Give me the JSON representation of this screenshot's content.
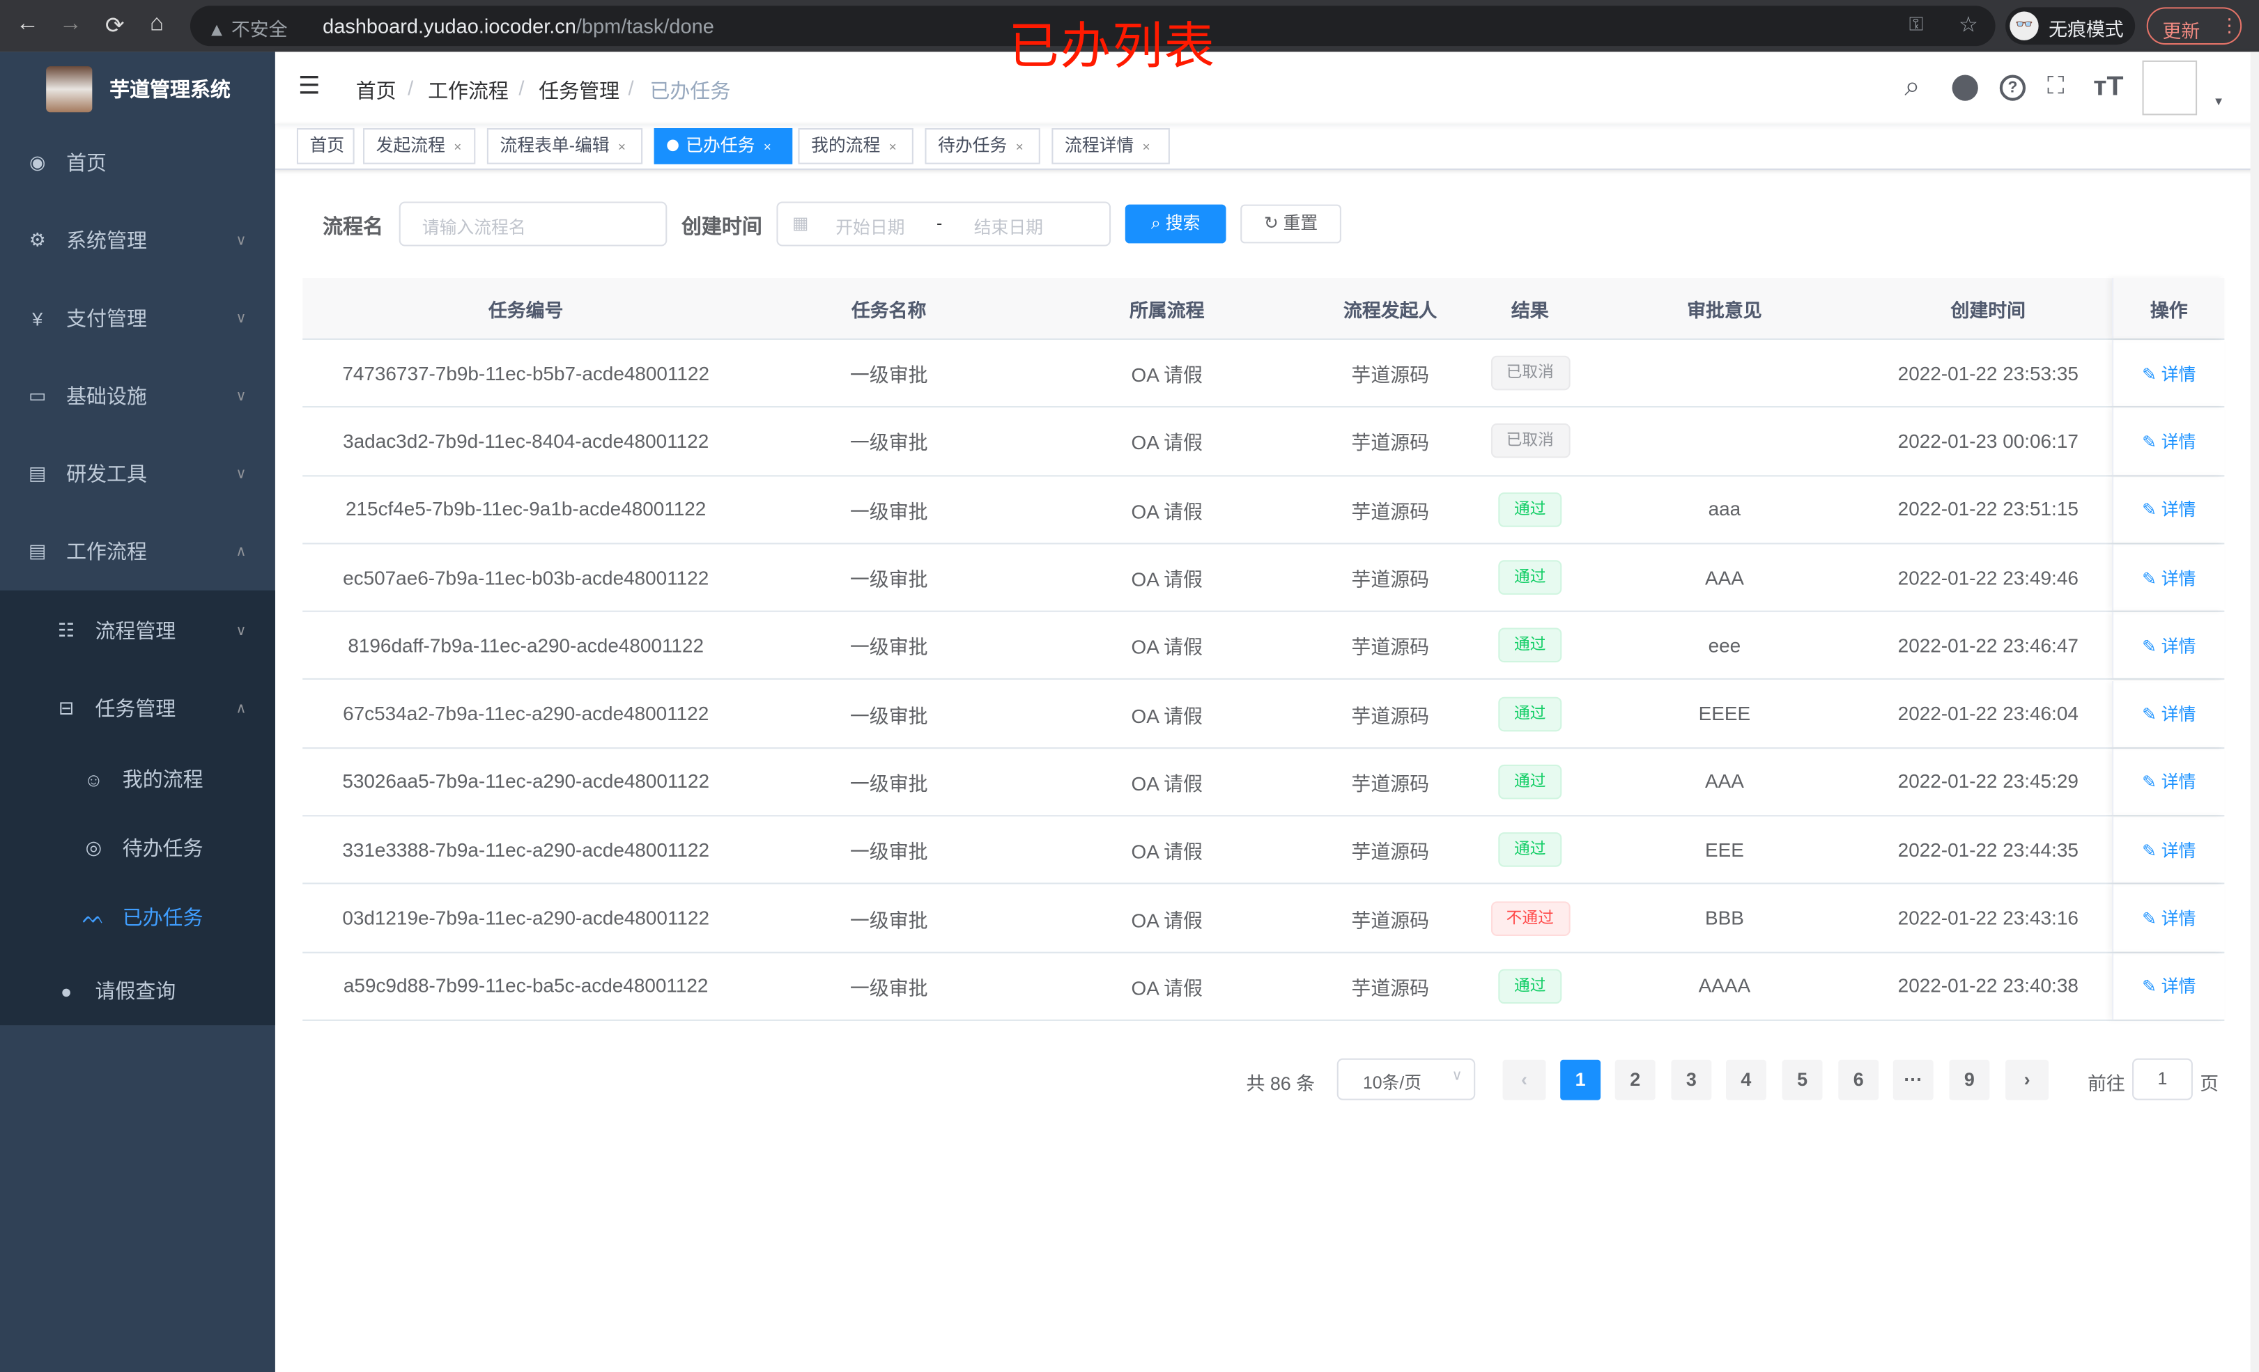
{
  "browser": {
    "back": "←",
    "forward": "→",
    "reload": "⟳",
    "home": "⌂",
    "security_label": "不安全",
    "url_host": "dashboard.yudao.iocoder.cn",
    "url_path": "/bpm/task/done",
    "incognito_label": "无痕模式",
    "update_label": "更新"
  },
  "annotation": "已办列表",
  "sidebar": {
    "title": "芋道管理系统",
    "items": [
      {
        "label": "首页",
        "icon": "dashboard-icon"
      },
      {
        "label": "系统管理",
        "icon": "gear-icon"
      },
      {
        "label": "支付管理",
        "icon": "yen-icon"
      },
      {
        "label": "基础设施",
        "icon": "monitor-icon"
      },
      {
        "label": "研发工具",
        "icon": "toolbox-icon"
      },
      {
        "label": "工作流程",
        "icon": "toolbox-icon"
      },
      {
        "label": "流程管理",
        "icon": "list-icon"
      },
      {
        "label": "任务管理",
        "icon": "tree-icon"
      },
      {
        "label": "我的流程",
        "icon": "chat-icon"
      },
      {
        "label": "待办任务",
        "icon": "eye-icon"
      },
      {
        "label": "已办任务",
        "icon": "eye-closed-icon"
      },
      {
        "label": "请假查询",
        "icon": "user-icon"
      }
    ]
  },
  "breadcrumb": [
    "首页",
    "工作流程",
    "任务管理",
    "已办任务"
  ],
  "tags": [
    {
      "label": "首页"
    },
    {
      "label": "发起流程"
    },
    {
      "label": "流程表单-编辑"
    },
    {
      "label": "已办任务"
    },
    {
      "label": "我的流程"
    },
    {
      "label": "待办任务"
    },
    {
      "label": "流程详情"
    }
  ],
  "search": {
    "name_label": "流程名",
    "name_placeholder": "请输入流程名",
    "time_label": "创建时间",
    "start_placeholder": "开始日期",
    "range_sep": "-",
    "end_placeholder": "结束日期",
    "search_btn": "搜索",
    "reset_btn": "重置"
  },
  "table": {
    "headers": [
      "任务编号",
      "任务名称",
      "所属流程",
      "流程发起人",
      "结果",
      "审批意见",
      "创建时间",
      "操作"
    ],
    "rows": [
      {
        "id": "74736737-7b9b-11ec-b5b7-acde48001122",
        "name": "一级审批",
        "process": "OA 请假",
        "starter": "芋道源码",
        "result": "已取消",
        "status": "cancel",
        "comment": "",
        "time": "2022-01-22 23:53:35",
        "op": "详情"
      },
      {
        "id": "3adac3d2-7b9d-11ec-8404-acde48001122",
        "name": "一级审批",
        "process": "OA 请假",
        "starter": "芋道源码",
        "result": "已取消",
        "status": "cancel",
        "comment": "",
        "time": "2022-01-23 00:06:17",
        "op": "详情"
      },
      {
        "id": "215cf4e5-7b9b-11ec-9a1b-acde48001122",
        "name": "一级审批",
        "process": "OA 请假",
        "starter": "芋道源码",
        "result": "通过",
        "status": "pass",
        "comment": "aaa",
        "time": "2022-01-22 23:51:15",
        "op": "详情"
      },
      {
        "id": "ec507ae6-7b9a-11ec-b03b-acde48001122",
        "name": "一级审批",
        "process": "OA 请假",
        "starter": "芋道源码",
        "result": "通过",
        "status": "pass",
        "comment": "AAA",
        "time": "2022-01-22 23:49:46",
        "op": "详情"
      },
      {
        "id": "8196daff-7b9a-11ec-a290-acde48001122",
        "name": "一级审批",
        "process": "OA 请假",
        "starter": "芋道源码",
        "result": "通过",
        "status": "pass",
        "comment": "eee",
        "time": "2022-01-22 23:46:47",
        "op": "详情"
      },
      {
        "id": "67c534a2-7b9a-11ec-a290-acde48001122",
        "name": "一级审批",
        "process": "OA 请假",
        "starter": "芋道源码",
        "result": "通过",
        "status": "pass",
        "comment": "EEEE",
        "time": "2022-01-22 23:46:04",
        "op": "详情"
      },
      {
        "id": "53026aa5-7b9a-11ec-a290-acde48001122",
        "name": "一级审批",
        "process": "OA 请假",
        "starter": "芋道源码",
        "result": "通过",
        "status": "pass",
        "comment": "AAA",
        "time": "2022-01-22 23:45:29",
        "op": "详情"
      },
      {
        "id": "331e3388-7b9a-11ec-a290-acde48001122",
        "name": "一级审批",
        "process": "OA 请假",
        "starter": "芋道源码",
        "result": "通过",
        "status": "pass",
        "comment": "EEE",
        "time": "2022-01-22 23:44:35",
        "op": "详情"
      },
      {
        "id": "03d1219e-7b9a-11ec-a290-acde48001122",
        "name": "一级审批",
        "process": "OA 请假",
        "starter": "芋道源码",
        "result": "不通过",
        "status": "reject",
        "comment": "BBB",
        "time": "2022-01-22 23:43:16",
        "op": "详情"
      },
      {
        "id": "a59c9d88-7b99-11ec-ba5c-acde48001122",
        "name": "一级审批",
        "process": "OA 请假",
        "starter": "芋道源码",
        "result": "通过",
        "status": "pass",
        "comment": "AAAA",
        "time": "2022-01-22 23:40:38",
        "op": "详情"
      }
    ]
  },
  "pagination": {
    "total_text": "共 86 条",
    "page_size": "10条/页",
    "pages": [
      "1",
      "2",
      "3",
      "4",
      "5",
      "6",
      "···",
      "9"
    ],
    "current": "1",
    "goto_label": "前往",
    "goto_value": "1",
    "goto_suffix": "页"
  },
  "colors": {
    "primary": "#1890ff",
    "sidebar": "#304156",
    "submenu": "#1f2d3d",
    "pass": "#13ce66",
    "reject": "#ff4949",
    "cancel": "#909399"
  }
}
